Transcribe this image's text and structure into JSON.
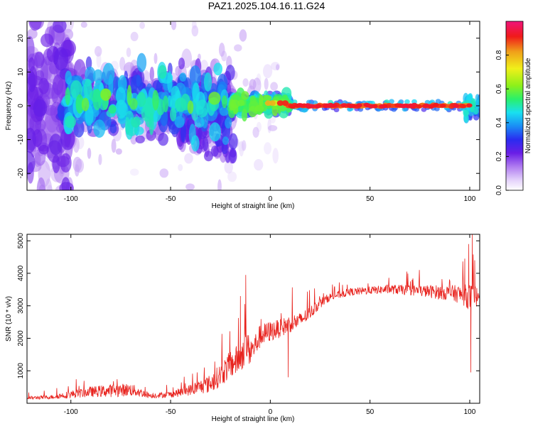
{
  "title": "PAZ1.2025.104.16.11.G24",
  "colors": {
    "snr_line": "#e8231e",
    "axis": "#000000",
    "spectrogram_scale": [
      "#ffffff",
      "#e4d2fb",
      "#c9a6f4",
      "#8f3fe8",
      "#5a14e0",
      "#2a2cf0",
      "#1a8ef5",
      "#19e0f0",
      "#2af06a",
      "#8ef01a",
      "#f0f01a",
      "#f0a01a",
      "#f01a1a",
      "#f0147a"
    ]
  },
  "chart_data": [
    {
      "type": "heatmap",
      "xlabel": "Height of straight line (km)",
      "ylabel": "Frequency (Hz)",
      "xlim": [
        -122,
        105
      ],
      "ylim": [
        -25,
        25
      ],
      "x_ticks": [
        -100,
        -50,
        0,
        50,
        100
      ],
      "y_ticks": [
        -20,
        -10,
        0,
        10,
        20
      ],
      "grid": false,
      "colorbar": {
        "label": "Normalized spectral amplitude",
        "range": [
          0,
          1
        ],
        "ticks": [
          0.0,
          0.2,
          0.4,
          0.6,
          0.8
        ],
        "tick_labels": [
          "0.0",
          "0.2",
          "0.4",
          "0.6",
          "0.8"
        ]
      },
      "band": {
        "description_x_ranges": [
          {
            "x": [
              -122,
              -105
            ],
            "freq_center": 0,
            "freq_spread": 22,
            "amplitude": 0.15
          },
          {
            "x": [
              -105,
              -20
            ],
            "freq_center": -1,
            "freq_spread": 8,
            "amplitude": 0.35
          },
          {
            "x": [
              -20,
              10
            ],
            "freq_center": 0.5,
            "freq_spread": 3,
            "amplitude": 0.5
          },
          {
            "x": [
              10,
              100
            ],
            "freq_center": 0,
            "freq_spread": 0.6,
            "amplitude": 0.9
          },
          {
            "x": [
              100,
              105
            ],
            "freq_center": 0,
            "freq_spread": 2,
            "amplitude": 0.4
          }
        ]
      }
    },
    {
      "type": "line",
      "xlabel": "Height of straight line (km)",
      "ylabel": "SNR (10 * v/v)",
      "xlim": [
        -122,
        105
      ],
      "ylim": [
        0,
        5200
      ],
      "x_ticks": [
        -100,
        -50,
        0,
        50,
        100
      ],
      "y_ticks": [
        1000,
        2000,
        3000,
        4000,
        5000
      ],
      "grid": false,
      "series": [
        {
          "color": "#e8231e",
          "envelope_x": [
            -122,
            -110,
            -100,
            -90,
            -80,
            -70,
            -60,
            -50,
            -40,
            -30,
            -25,
            -20,
            -15,
            -12,
            -10,
            -5,
            0,
            5,
            10,
            15,
            20,
            25,
            30,
            40,
            50,
            60,
            70,
            80,
            90,
            95,
            100,
            102,
            105
          ],
          "envelope_mean": [
            150,
            180,
            250,
            320,
            350,
            380,
            220,
            250,
            380,
            550,
            800,
            1100,
            1300,
            1700,
            1450,
            2000,
            2150,
            2250,
            2400,
            2500,
            2750,
            3050,
            3250,
            3400,
            3450,
            3480,
            3450,
            3400,
            3350,
            3300,
            3200,
            3100,
            3350
          ],
          "envelope_noise": [
            60,
            80,
            150,
            200,
            250,
            250,
            100,
            120,
            220,
            350,
            450,
            550,
            600,
            700,
            500,
            450,
            400,
            350,
            350,
            300,
            250,
            200,
            150,
            150,
            150,
            180,
            200,
            250,
            300,
            350,
            500,
            600,
            150
          ],
          "spikes": [
            {
              "x": -12.3,
              "y": 3950
            },
            {
              "x": -15,
              "y": 3300
            },
            {
              "x": 9,
              "y": 800
            },
            {
              "x": 100.5,
              "y": 950
            },
            {
              "x": 101.3,
              "y": 5200
            },
            {
              "x": 99.5,
              "y": 4900
            },
            {
              "x": 102.5,
              "y": 4400
            },
            {
              "x": 97.5,
              "y": 4450
            }
          ]
        }
      ]
    }
  ]
}
